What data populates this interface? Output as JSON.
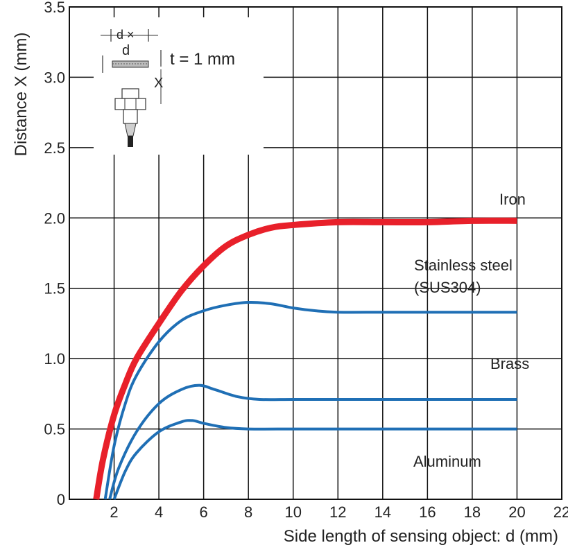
{
  "chart_data": {
    "type": "line",
    "title": "",
    "xlabel": "Side length of sensing object: d (mm)",
    "ylabel": "Distance X (mm)",
    "xlim": [
      0,
      22
    ],
    "ylim": [
      0,
      3.5
    ],
    "x_ticks": [
      "2",
      "4",
      "6",
      "8",
      "10",
      "12",
      "14",
      "16",
      "18",
      "20",
      "22"
    ],
    "y_ticks": [
      "0",
      "0.5",
      "1.0",
      "1.5",
      "2.0",
      "2.5",
      "3.0",
      "3.5"
    ],
    "grid": true,
    "colors": {
      "iron": "#e8202a",
      "others": "#1f6fb5"
    },
    "series": [
      {
        "name": "Iron",
        "x": [
          1.2,
          1.5,
          2,
          2.5,
          3,
          4,
          5,
          6,
          7,
          8,
          9,
          10,
          12,
          14,
          16,
          18,
          20
        ],
        "values": [
          0.0,
          0.28,
          0.6,
          0.82,
          1.0,
          1.25,
          1.48,
          1.66,
          1.8,
          1.88,
          1.93,
          1.95,
          1.97,
          1.97,
          1.97,
          1.98,
          1.98
        ]
      },
      {
        "name": "Stainless steel\n(SUS304)",
        "x": [
          1.6,
          2,
          2.5,
          3,
          4,
          5,
          6,
          7,
          8,
          9,
          10,
          11,
          12,
          14,
          16,
          18,
          20
        ],
        "values": [
          0.0,
          0.38,
          0.68,
          0.88,
          1.12,
          1.27,
          1.34,
          1.38,
          1.4,
          1.39,
          1.36,
          1.34,
          1.33,
          1.33,
          1.33,
          1.33,
          1.33
        ]
      },
      {
        "name": "Brass",
        "x": [
          1.8,
          2.2,
          3,
          4,
          5,
          5.8,
          6.5,
          7.5,
          8.5,
          10,
          12,
          14,
          16,
          18,
          20
        ],
        "values": [
          0.0,
          0.22,
          0.48,
          0.68,
          0.78,
          0.81,
          0.78,
          0.73,
          0.71,
          0.71,
          0.71,
          0.71,
          0.71,
          0.71,
          0.71
        ]
      },
      {
        "name": "Aluminum",
        "x": [
          2.0,
          2.5,
          3,
          4,
          5,
          5.5,
          6,
          7,
          8,
          10,
          12,
          14,
          16,
          18,
          20
        ],
        "values": [
          0.0,
          0.2,
          0.33,
          0.48,
          0.55,
          0.56,
          0.54,
          0.51,
          0.5,
          0.5,
          0.5,
          0.5,
          0.5,
          0.5,
          0.5
        ]
      }
    ],
    "inset": {
      "dim_label_top": "d ×",
      "dim_label_bottom": "d",
      "thickness_label": "t = 1 mm",
      "distance_label": "X"
    }
  },
  "tick_zero_x": "0"
}
